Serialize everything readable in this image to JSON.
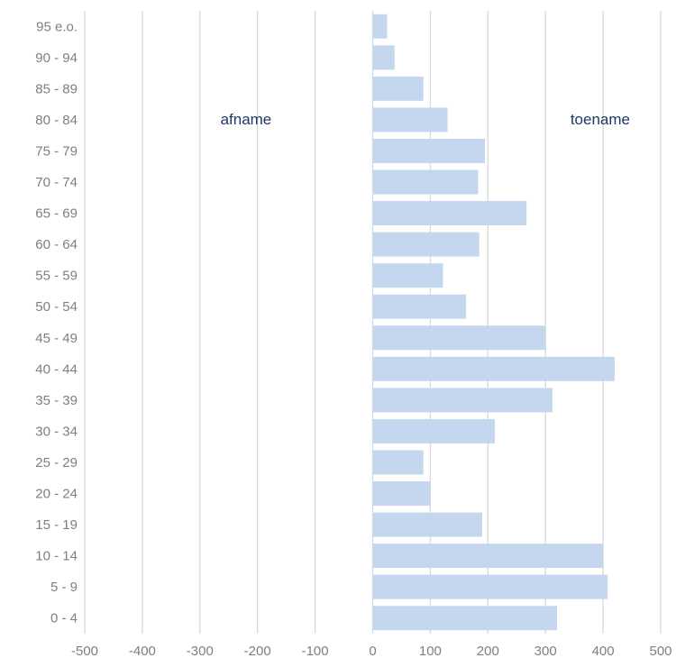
{
  "chart_data": {
    "type": "bar",
    "orientation": "horizontal",
    "categories": [
      "95 e.o.",
      "90 - 94",
      "85 - 89",
      "80 - 84",
      "75 - 79",
      "70 - 74",
      "65 - 69",
      "60 - 64",
      "55 - 59",
      "50 - 54",
      "45 - 49",
      "40 - 44",
      "35 - 39",
      "30 - 34",
      "25 - 29",
      "20 - 24",
      "15 - 19",
      "10 - 14",
      "5 - 9",
      "0 - 4"
    ],
    "values": [
      25,
      38,
      88,
      130,
      195,
      183,
      267,
      185,
      122,
      162,
      300,
      420,
      312,
      212,
      88,
      100,
      190,
      400,
      408,
      320
    ],
    "xlim": [
      -500,
      500
    ],
    "xticks": [
      "-500",
      "-400",
      "-300",
      "-200",
      "-100",
      "0",
      "100",
      "200",
      "300",
      "400",
      "500"
    ],
    "grid": "vertical",
    "bar_color": "#c5d6ef",
    "annotations": [
      {
        "text": "afname",
        "x": -220
      },
      {
        "text": "toename",
        "x": 395
      }
    ],
    "title": "",
    "xlabel": "",
    "ylabel": ""
  }
}
